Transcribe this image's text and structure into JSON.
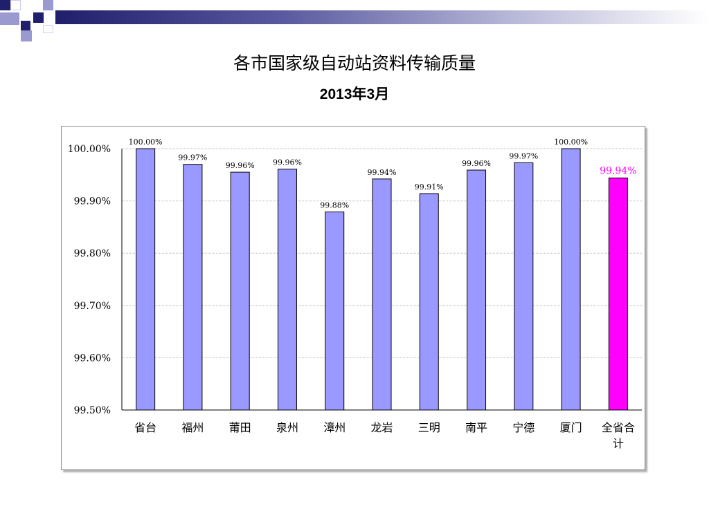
{
  "title": "各市国家级自动站资料传输质量",
  "subtitle": "2013年3月",
  "colors": {
    "bar": "#9999ff",
    "highlight_bar": "#ff00ff",
    "highlight_label": "#ff00ff",
    "deco_dark": "#1f1f6b",
    "deco_light": "#9a9ad0"
  },
  "chart_data": {
    "type": "bar",
    "categories": [
      "省台",
      "福州",
      "莆田",
      "泉州",
      "漳州",
      "龙岩",
      "三明",
      "南平",
      "宁德",
      "厦门",
      "全省合计"
    ],
    "values": [
      100.0,
      99.97,
      99.955,
      99.961,
      99.879,
      99.942,
      99.914,
      99.959,
      99.973,
      100.0,
      99.944
    ],
    "data_labels": [
      "100.00%",
      "99.97%",
      "99.96%",
      "99.96%",
      "99.88%",
      "99.94%",
      "99.91%",
      "99.96%",
      "99.97%",
      "100.00%",
      "99.94%"
    ],
    "y_tick_values": [
      99.5,
      99.6,
      99.7,
      99.8,
      99.9,
      100.0
    ],
    "y_tick_labels": [
      "99.50%",
      "99.60%",
      "99.70%",
      "99.80%",
      "99.90%",
      "100.00%"
    ],
    "ylim": [
      99.5,
      100.0
    ],
    "grid": true,
    "highlight_index": 10,
    "title": "",
    "xlabel": "",
    "ylabel": ""
  }
}
